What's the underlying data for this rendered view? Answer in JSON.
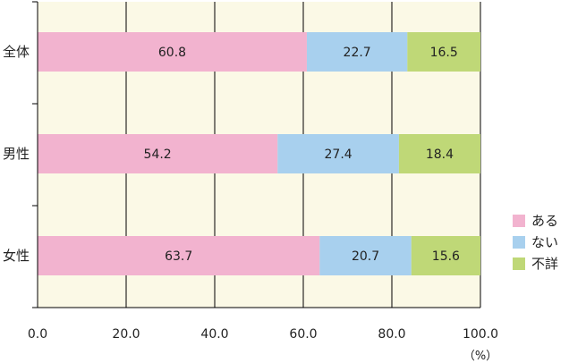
{
  "chart_data": {
    "type": "bar",
    "orientation": "horizontal",
    "stacked": true,
    "categories": [
      "全体",
      "男性",
      "女性"
    ],
    "series": [
      {
        "name": "ある",
        "values": [
          60.8,
          54.2,
          63.7
        ],
        "color": "#f2b3cf"
      },
      {
        "name": "ない",
        "values": [
          22.7,
          27.4,
          20.7
        ],
        "color": "#a8d0ee"
      },
      {
        "name": "不詳",
        "values": [
          16.5,
          18.4,
          15.6
        ],
        "color": "#bfd877"
      }
    ],
    "x_ticks": [
      "0.0",
      "20.0",
      "40.0",
      "60.0",
      "80.0",
      "100.0"
    ],
    "xlim": [
      0,
      100
    ],
    "unit": "（%）",
    "grid": true,
    "legend_position": "right",
    "plot_background": "#fbf9e6"
  }
}
